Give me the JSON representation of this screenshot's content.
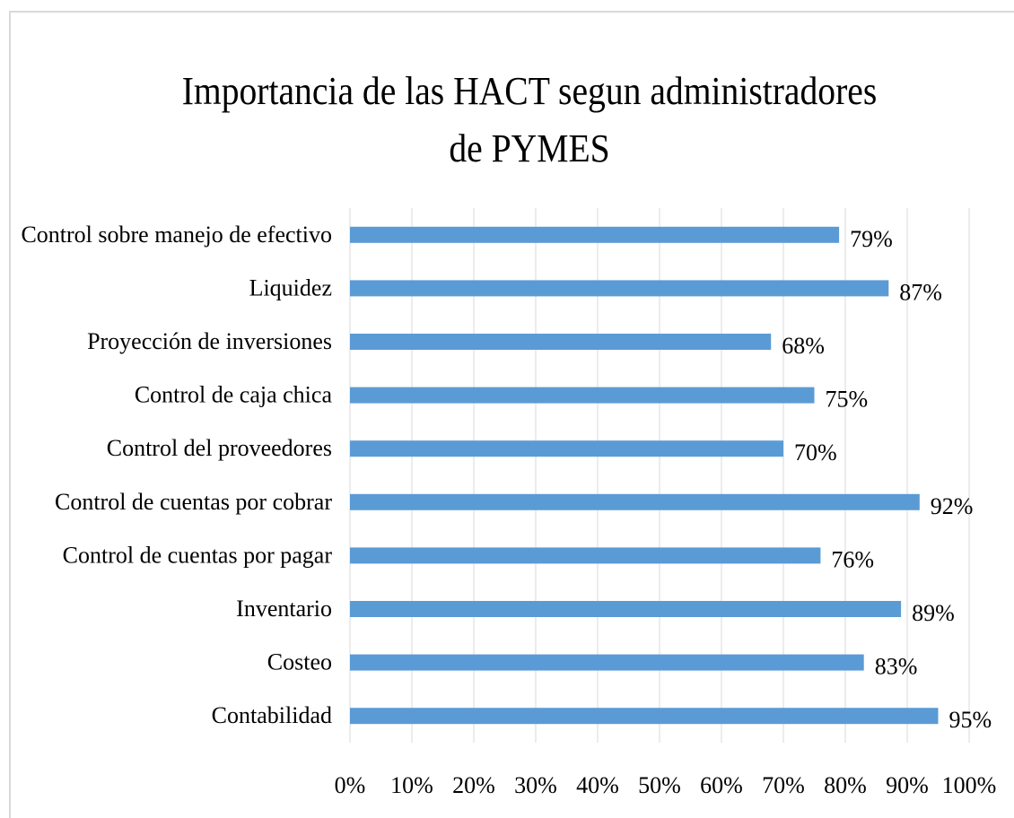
{
  "chart_data": {
    "type": "bar",
    "orientation": "horizontal",
    "title": "Importancia de las HACT segun administradores de PYMES",
    "categories": [
      "Control sobre manejo de efectivo",
      "Liquidez",
      "Proyección de inversiones",
      "Control de caja chica",
      "Control del proveedores",
      "Control de cuentas por cobrar",
      "Control de cuentas por pagar",
      "Inventario",
      "Costeo",
      "Contabilidad"
    ],
    "values": [
      79,
      87,
      68,
      75,
      70,
      92,
      76,
      89,
      83,
      95
    ],
    "value_labels": [
      "79%",
      "87%",
      "68%",
      "75%",
      "70%",
      "92%",
      "76%",
      "89%",
      "83%",
      "95%"
    ],
    "color": "#5b9bd5",
    "xlim": [
      0,
      100
    ],
    "xticks": [
      {
        "value": 0,
        "label": "0%"
      },
      {
        "value": 10,
        "label": "10%"
      },
      {
        "value": 20,
        "label": "20%"
      },
      {
        "value": 30,
        "label": "30%"
      },
      {
        "value": 40,
        "label": "40%"
      },
      {
        "value": 50,
        "label": "50%"
      },
      {
        "value": 60,
        "label": "60%"
      },
      {
        "value": 70,
        "label": "70%"
      },
      {
        "value": 80,
        "label": "80%"
      },
      {
        "value": 90,
        "label": "90%"
      },
      {
        "value": 100,
        "label": "100%"
      }
    ],
    "grid": true
  }
}
